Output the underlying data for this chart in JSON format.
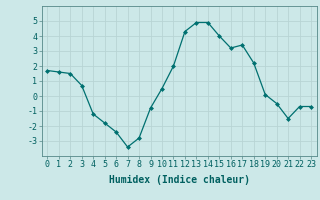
{
  "x": [
    0,
    1,
    2,
    3,
    4,
    5,
    6,
    7,
    8,
    9,
    10,
    11,
    12,
    13,
    14,
    15,
    16,
    17,
    18,
    19,
    20,
    21,
    22,
    23
  ],
  "y": [
    1.7,
    1.6,
    1.5,
    0.7,
    -1.2,
    -1.8,
    -2.4,
    -3.4,
    -2.8,
    -0.8,
    0.5,
    2.0,
    4.3,
    4.9,
    4.9,
    4.0,
    3.2,
    3.4,
    2.2,
    0.1,
    -0.5,
    -1.5,
    -0.7,
    -0.7
  ],
  "xlim": [
    -0.5,
    23.5
  ],
  "ylim": [
    -4,
    6
  ],
  "yticks": [
    -3,
    -2,
    -1,
    0,
    1,
    2,
    3,
    4,
    5
  ],
  "xticks": [
    0,
    1,
    2,
    3,
    4,
    5,
    6,
    7,
    8,
    9,
    10,
    11,
    12,
    13,
    14,
    15,
    16,
    17,
    18,
    19,
    20,
    21,
    22,
    23
  ],
  "xlabel": "Humidex (Indice chaleur)",
  "line_color": "#007070",
  "marker": "D",
  "marker_size": 2,
  "bg_color": "#cce8e8",
  "grid_color": "#b8d4d4",
  "spine_color": "#558888",
  "label_fontsize": 7,
  "tick_fontsize": 6
}
